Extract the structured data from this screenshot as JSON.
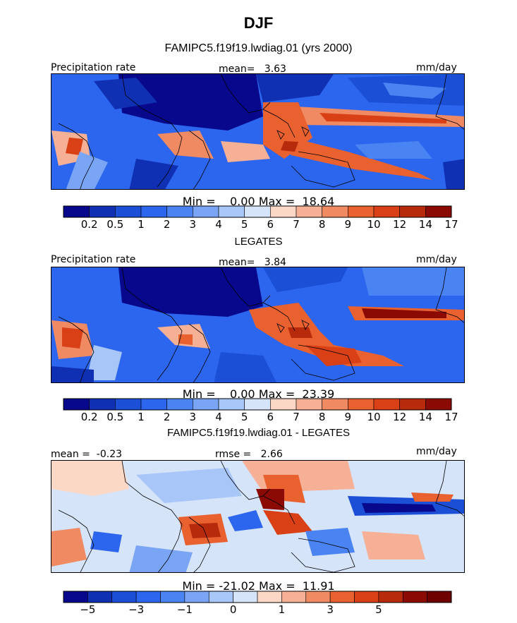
{
  "page": {
    "title": "DJF",
    "subtitle": "FAMIPC5.f19f19.lwdiag.01 (yrs 2000)"
  },
  "chart_data": [
    {
      "type": "heatmap",
      "panel_label": "Precipitation rate",
      "mean_text": "mean=   3.63",
      "units": "mm/day",
      "minmax_text": "Min =    0.00 Max =  18.64",
      "colorbar": {
        "levels": [
          "0.2",
          "0.5",
          "1",
          "2",
          "3",
          "4",
          "5",
          "6",
          "7",
          "8",
          "9",
          "10",
          "12",
          "14",
          "17"
        ],
        "colors": [
          "#08088c",
          "#1030b4",
          "#1a4fd6",
          "#2c66ee",
          "#4a84f2",
          "#7aa5f5",
          "#a9c6f8",
          "#d6e4fa",
          "#fbd8c6",
          "#f6b095",
          "#ef8a63",
          "#e8612f",
          "#d94016",
          "#b72a0b",
          "#8b0a04"
        ]
      },
      "field": "model precipitation, tropical band"
    },
    {
      "type": "heatmap",
      "panel_title": "LEGATES",
      "panel_label": "Precipitation rate",
      "mean_text": "mean=   3.84",
      "units": "mm/day",
      "minmax_text": "Min =    0.00 Max =  23.39",
      "colorbar": {
        "levels": [
          "0.2",
          "0.5",
          "1",
          "2",
          "3",
          "4",
          "5",
          "6",
          "7",
          "8",
          "9",
          "10",
          "12",
          "14",
          "17"
        ],
        "colors": [
          "#08088c",
          "#1030b4",
          "#1a4fd6",
          "#2c66ee",
          "#4a84f2",
          "#7aa5f5",
          "#a9c6f8",
          "#d6e4fa",
          "#fbd8c6",
          "#f6b095",
          "#ef8a63",
          "#e8612f",
          "#d94016",
          "#b72a0b",
          "#8b0a04"
        ]
      },
      "field": "observed precipitation, tropical band"
    },
    {
      "type": "heatmap",
      "panel_title": "FAMIPC5.f19f19.lwdiag.01 - LEGATES",
      "mean_text": "mean =  -0.23",
      "rmse_text": "rmse =   2.66",
      "units": "mm/day",
      "minmax_text": "Min = -21.02 Max =  11.91",
      "colorbar": {
        "labels": [
          {
            "text": "−5",
            "after": 1
          },
          {
            "text": "−3",
            "after": 3
          },
          {
            "text": "−1",
            "after": 5
          },
          {
            "text": "0",
            "after": 7
          },
          {
            "text": "1",
            "after": 9
          },
          {
            "text": "3",
            "after": 11
          },
          {
            "text": "5",
            "after": 13
          }
        ],
        "colors": [
          "#08088c",
          "#1030b4",
          "#1a4fd6",
          "#2c66ee",
          "#4a84f2",
          "#7aa5f5",
          "#a9c6f8",
          "#d6e4fa",
          "#fbd8c6",
          "#f6b095",
          "#ef8a63",
          "#e8612f",
          "#d94016",
          "#b72a0b",
          "#8b0a04",
          "#6e0000"
        ]
      },
      "field": "difference model minus observations"
    }
  ]
}
